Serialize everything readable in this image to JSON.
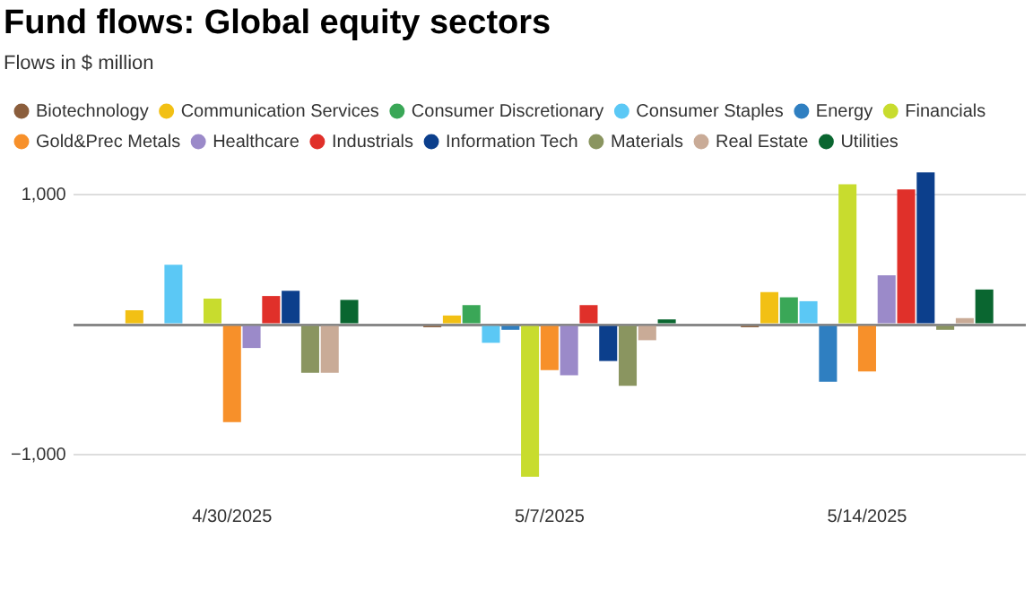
{
  "chart_data": {
    "type": "bar",
    "title": "Fund flows: Global equity sectors",
    "subtitle": "Flows in $ million",
    "categories": [
      "4/30/2025",
      "5/7/2025",
      "5/14/2025"
    ],
    "series": [
      {
        "name": "Biotechnology",
        "color": "#8b5e3c",
        "values": [
          0,
          -20,
          -20
        ]
      },
      {
        "name": "Communication Services",
        "color": "#f2c014",
        "values": [
          110,
          70,
          250
        ]
      },
      {
        "name": "Consumer Discretionary",
        "color": "#3aa757",
        "values": [
          0,
          150,
          210
        ]
      },
      {
        "name": "Consumer Staples",
        "color": "#5bc8f5",
        "values": [
          460,
          -140,
          180
        ]
      },
      {
        "name": "Energy",
        "color": "#2f7fc1",
        "values": [
          10,
          -40,
          -440
        ]
      },
      {
        "name": "Financials",
        "color": "#c8dc2e",
        "values": [
          200,
          -1170,
          1080
        ]
      },
      {
        "name": "Gold&Prec Metals",
        "color": "#f7902a",
        "values": [
          -750,
          -350,
          -360
        ]
      },
      {
        "name": "Healthcare",
        "color": "#9b8ac9",
        "values": [
          -180,
          -390,
          380
        ]
      },
      {
        "name": "Industrials",
        "color": "#e0302a",
        "values": [
          220,
          150,
          1040
        ]
      },
      {
        "name": "Information Tech",
        "color": "#0c3f8c",
        "values": [
          260,
          -280,
          1170
        ]
      },
      {
        "name": "Materials",
        "color": "#8a9560",
        "values": [
          -370,
          -470,
          -40
        ]
      },
      {
        "name": "Real Estate",
        "color": "#c9ab97",
        "values": [
          -370,
          -120,
          50
        ]
      },
      {
        "name": "Utilities",
        "color": "#0a6630",
        "values": [
          190,
          40,
          270
        ]
      }
    ],
    "ylim": [
      -1200,
      1200
    ],
    "yticks": [
      {
        "value": -1000,
        "label": "−1,000"
      },
      {
        "value": 0,
        "label": null
      },
      {
        "value": 1000,
        "label": "1,000"
      }
    ],
    "grid": "y",
    "legend": "top"
  }
}
